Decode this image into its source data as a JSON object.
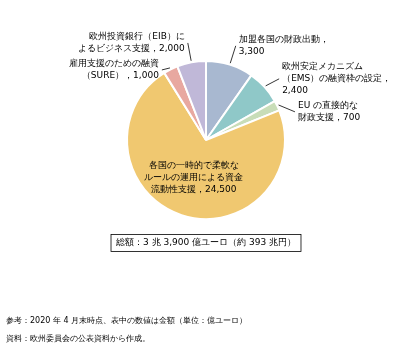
{
  "chart_data": {
    "type": "pie",
    "categories": [
      "加盟各国の財政出動，\n3,300",
      "欧州安定メカニズム\n（EMS）の融資枠の設定，\n2,400",
      "EU の直接的な\n財政支援，700",
      "各国の一時的で柔軟な\nルールの運用による資金\n流動性支援，24,500",
      "雇用支援のための融資\n（SURE），1,000",
      "欧州投資銀行（EIB）に\nよるビジネス支援，2,000"
    ],
    "values": [
      3300,
      2400,
      700,
      24500,
      1000,
      2000
    ],
    "colors": [
      "#a8b8d0",
      "#8fc8c8",
      "#c8ddb8",
      "#f0c870",
      "#e8a8a0",
      "#c0b8d8"
    ],
    "annotations": [
      "総額：3 兆 3,900 億ユーロ（約 393 兆円）",
      "参考：2020 年 4 月末時点、表中の数値は金額（単位：億ユーロ）",
      "資料：欧州委員会の公表資料から作成。"
    ]
  }
}
